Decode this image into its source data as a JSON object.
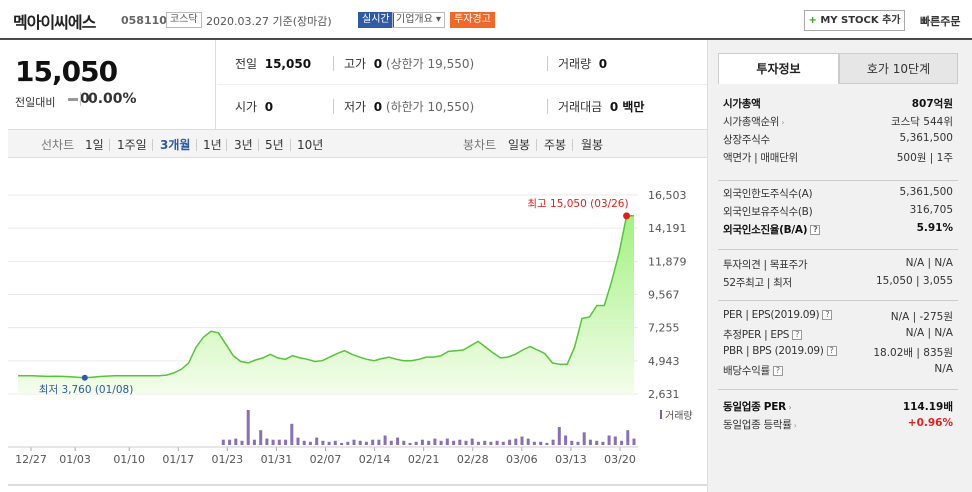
{
  "header": {
    "stock_name": "멕아이씨에스",
    "code": "058110",
    "market_tag": "코스닥",
    "date": "2020.03.27 기준(장마감)",
    "realtime_tag": "실시간",
    "corp_info": "기업개요",
    "warning_tag": "투자경고",
    "mystock_plus": "+",
    "mystock_label": "MY STOCK 추가",
    "fast_order": "빠른주문"
  },
  "price": {
    "current": "15,050",
    "change_label": "전일대비",
    "change_value": "0",
    "change_pct": "0.00%"
  },
  "quote": {
    "prev_label": "전일",
    "prev_value": "15,050",
    "high_label": "고가",
    "high_value": "0",
    "high_limit": "(상한가 19,550)",
    "volume_label": "거래량",
    "volume_value": "0",
    "open_label": "시가",
    "open_value": "0",
    "low_label": "저가",
    "low_value": "0",
    "low_limit": "(하한가 10,550)",
    "amount_label": "거래대금",
    "amount_value": "0 백만"
  },
  "period": {
    "line_label": "선차트",
    "line_items": [
      "1일",
      "1주일",
      "3개월",
      "1년",
      "3년",
      "5년",
      "10년"
    ],
    "selected": "3개월",
    "candle_label": "봉차트",
    "candle_items": [
      "일봉",
      "주봉",
      "월봉"
    ]
  },
  "chart_data": {
    "type": "line",
    "y_ticks": [
      "16,503",
      "14,191",
      "11,879",
      "9,567",
      "7,255",
      "4,943",
      "2,631"
    ],
    "ylim": [
      2631,
      16503
    ],
    "x_ticks": [
      "12/27",
      "01/03",
      "01/10",
      "01/17",
      "01/23",
      "01/31",
      "02/07",
      "02/14",
      "02/21",
      "02/28",
      "03/06",
      "03/13",
      "03/20"
    ],
    "series": [
      {
        "values": [
          3900,
          3900,
          3900,
          3880,
          3860,
          3870,
          3860,
          3840,
          3800,
          3760,
          3800,
          3850,
          3880,
          3900,
          3900,
          3900,
          3900,
          3900,
          3900,
          3900,
          3950,
          4100,
          4350,
          4800,
          5900,
          6600,
          7000,
          6900,
          6100,
          5300,
          4900,
          4800,
          5000,
          5150,
          5400,
          5150,
          5050,
          5300,
          5150,
          5050,
          4900,
          4950,
          5200,
          5450,
          5650,
          5400,
          5200,
          5050,
          4950,
          5100,
          5200,
          5050,
          4950,
          4950,
          5050,
          5200,
          5200,
          5300,
          5600,
          5650,
          5700,
          6000,
          6300,
          5900,
          5500,
          5150,
          5200,
          5400,
          5700,
          5950,
          5700,
          5450,
          4800,
          4700,
          4700,
          5900,
          7900,
          8000,
          8800,
          8800,
          10500,
          12500,
          15050,
          15050
        ]
      }
    ],
    "max_annotation": "최고 15,050 (03/26)",
    "min_annotation": "최저 3,760 (01/08)",
    "volume_label": "거래량",
    "volume": [
      0,
      0,
      0,
      0,
      0,
      0,
      0,
      0,
      0,
      0,
      0,
      0,
      0,
      0,
      0,
      0,
      0,
      0,
      0,
      0,
      0,
      0,
      0,
      0,
      0,
      0,
      0,
      0,
      0,
      0,
      0,
      0,
      0,
      5,
      5,
      6,
      4,
      33,
      5,
      14,
      6,
      5,
      5,
      5,
      20,
      7,
      4,
      3,
      7,
      4,
      3,
      4,
      2,
      3,
      5,
      4,
      3,
      5,
      5,
      9,
      4,
      7,
      4,
      2,
      3,
      5,
      4,
      6,
      4,
      6,
      4,
      5,
      4,
      6,
      3,
      4,
      3,
      4,
      3,
      5,
      6,
      8,
      6,
      3,
      3,
      2,
      5,
      17,
      9,
      4,
      3,
      12,
      5,
      4,
      3,
      9,
      8,
      4,
      14,
      6
    ]
  },
  "info": {
    "tab_active": "투자정보",
    "tab_other": "호가 10단계",
    "rows1": [
      {
        "k": "시가총액",
        "v": "807억원"
      },
      {
        "k": "시가총액순위",
        "v": "코스닥 544위"
      },
      {
        "k": "상장주식수",
        "v": "5,361,500"
      },
      {
        "k": "액면가 | 매매단위",
        "v": "500원 | 1주"
      }
    ],
    "rows2": [
      {
        "k": "외국인한도주식수(A)",
        "v": "5,361,500"
      },
      {
        "k": "외국인보유주식수(B)",
        "v": "316,705"
      },
      {
        "k": "외국인소진율(B/A)",
        "v": "5.91%"
      }
    ],
    "rows3": [
      {
        "k": "투자의견 | 목표주가",
        "v": "N/A | N/A"
      },
      {
        "k": "52주최고 | 최저",
        "v": "15,050 | 3,055"
      }
    ],
    "rows4": [
      {
        "k": "PER | EPS(2019.09)",
        "v": "N/A | -275원"
      },
      {
        "k": "추정PER | EPS",
        "v": "N/A | N/A"
      },
      {
        "k": "PBR | BPS (2019.09)",
        "v": "18.02배 | 835원"
      },
      {
        "k": "배당수익률",
        "v": "N/A"
      }
    ],
    "rows5": [
      {
        "k": "동일업종 PER",
        "v": "114.19배"
      },
      {
        "k": "동일업종 등락률",
        "v": "+0.96%"
      }
    ]
  }
}
